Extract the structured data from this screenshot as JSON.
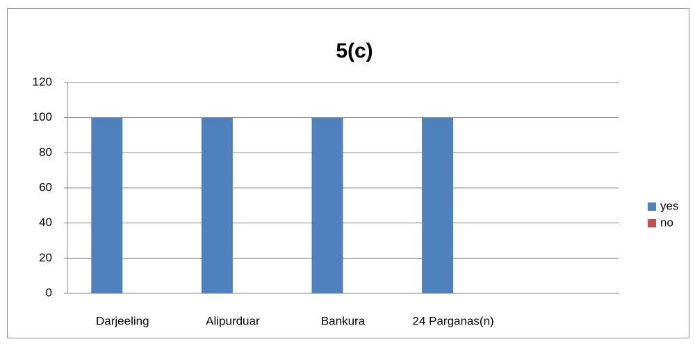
{
  "chart_data": {
    "type": "bar",
    "title": "5(c)",
    "categories": [
      "Darjeeling",
      "Alipurduar",
      "Bankura",
      "24 Parganas(n)",
      null
    ],
    "series": [
      {
        "name": "yes",
        "color": "#4f81bd",
        "values": [
          100,
          100,
          100,
          100,
          null
        ]
      },
      {
        "name": "no",
        "color": "#c0504d",
        "values": [
          0,
          0,
          0,
          0,
          null
        ]
      }
    ],
    "ylim": [
      0,
      120
    ],
    "yticks": [
      0,
      20,
      40,
      60,
      80,
      100,
      120
    ],
    "grid": true,
    "legend": "right"
  }
}
